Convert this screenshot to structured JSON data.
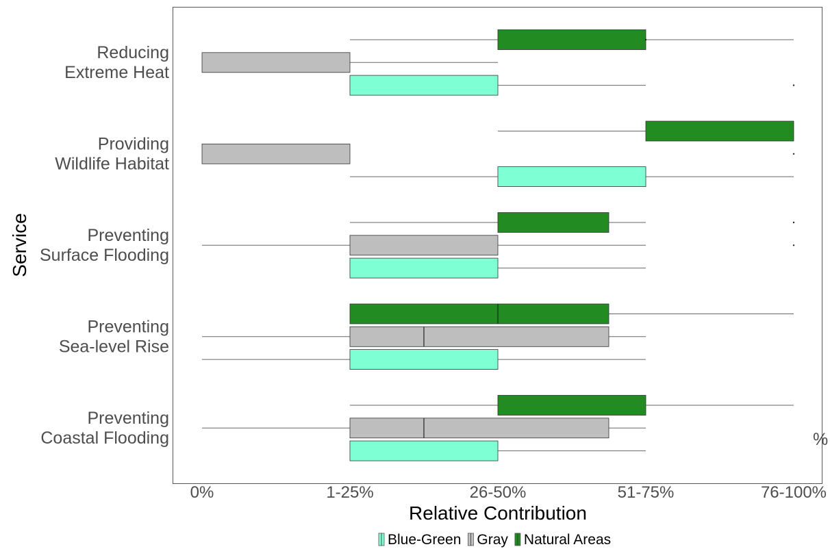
{
  "chart_data": {
    "type": "boxplot",
    "orientation": "horizontal",
    "xlabel": "Relative Contribution",
    "ylabel": "Service",
    "x_categories": [
      "0%",
      "1-25%",
      "26-50%",
      "51-75%",
      "76-100%"
    ],
    "stray_label": "%",
    "colors": {
      "Blue-Green": "#7fffd4",
      "Gray": "#bebebe",
      "Natural Areas": "#228b22"
    },
    "legend": [
      "Blue-Green",
      "Gray",
      "Natural Areas"
    ],
    "services": [
      {
        "label_lines": [
          "Reducing",
          "Extreme Heat"
        ],
        "boxes": [
          {
            "group": "Natural Areas",
            "whisker_low": 1,
            "q1": 2,
            "median": 2,
            "q3": 3,
            "whisker_high": 4,
            "outliers": [
              3
            ]
          },
          {
            "group": "Gray",
            "whisker_low": 0,
            "q1": 0,
            "median": 0,
            "q3": 1,
            "whisker_high": 2,
            "outliers": []
          },
          {
            "group": "Blue-Green",
            "whisker_low": 1,
            "q1": 1,
            "median": 1,
            "q3": 2,
            "whisker_high": 3,
            "outliers": [
              4
            ]
          }
        ]
      },
      {
        "label_lines": [
          "Providing",
          "Wildlife Habitat"
        ],
        "boxes": [
          {
            "group": "Natural Areas",
            "whisker_low": 2,
            "q1": 3,
            "median": 3,
            "q3": 4,
            "whisker_high": 4,
            "outliers": []
          },
          {
            "group": "Gray",
            "whisker_low": 0,
            "q1": 0,
            "median": 0,
            "q3": 1,
            "whisker_high": 1,
            "outliers": [
              4
            ]
          },
          {
            "group": "Blue-Green",
            "whisker_low": 1,
            "q1": 2,
            "median": 2,
            "q3": 3,
            "whisker_high": 4,
            "outliers": []
          }
        ]
      },
      {
        "label_lines": [
          "Preventing",
          "Surface Flooding"
        ],
        "boxes": [
          {
            "group": "Natural Areas",
            "whisker_low": 1,
            "q1": 2,
            "median": 2,
            "q3": 2.75,
            "whisker_high": 3,
            "outliers": [
              4
            ]
          },
          {
            "group": "Gray",
            "whisker_low": 0,
            "q1": 1,
            "median": 1,
            "q3": 2,
            "whisker_high": 3,
            "outliers": [
              4
            ]
          },
          {
            "group": "Blue-Green",
            "whisker_low": 1,
            "q1": 1,
            "median": 1,
            "q3": 2,
            "whisker_high": 3,
            "outliers": []
          }
        ]
      },
      {
        "label_lines": [
          "Preventing",
          "Sea-level Rise"
        ],
        "boxes": [
          {
            "group": "Natural Areas",
            "whisker_low": 1,
            "q1": 1,
            "median": 2,
            "q3": 2.75,
            "whisker_high": 4,
            "outliers": []
          },
          {
            "group": "Gray",
            "whisker_low": 0,
            "q1": 1,
            "median": 1.5,
            "q3": 2.75,
            "whisker_high": 3,
            "outliers": []
          },
          {
            "group": "Blue-Green",
            "whisker_low": 0,
            "q1": 1,
            "median": 1,
            "q3": 2,
            "whisker_high": 3,
            "outliers": []
          }
        ]
      },
      {
        "label_lines": [
          "Preventing",
          "Coastal Flooding"
        ],
        "boxes": [
          {
            "group": "Natural Areas",
            "whisker_low": 1,
            "q1": 2,
            "median": 2,
            "q3": 3,
            "whisker_high": 4,
            "outliers": []
          },
          {
            "group": "Gray",
            "whisker_low": 0,
            "q1": 1,
            "median": 1.5,
            "q3": 2.75,
            "whisker_high": 3,
            "outliers": []
          },
          {
            "group": "Blue-Green",
            "whisker_low": 1,
            "q1": 1,
            "median": 1,
            "q3": 2,
            "whisker_high": 3,
            "outliers": []
          }
        ]
      }
    ]
  }
}
